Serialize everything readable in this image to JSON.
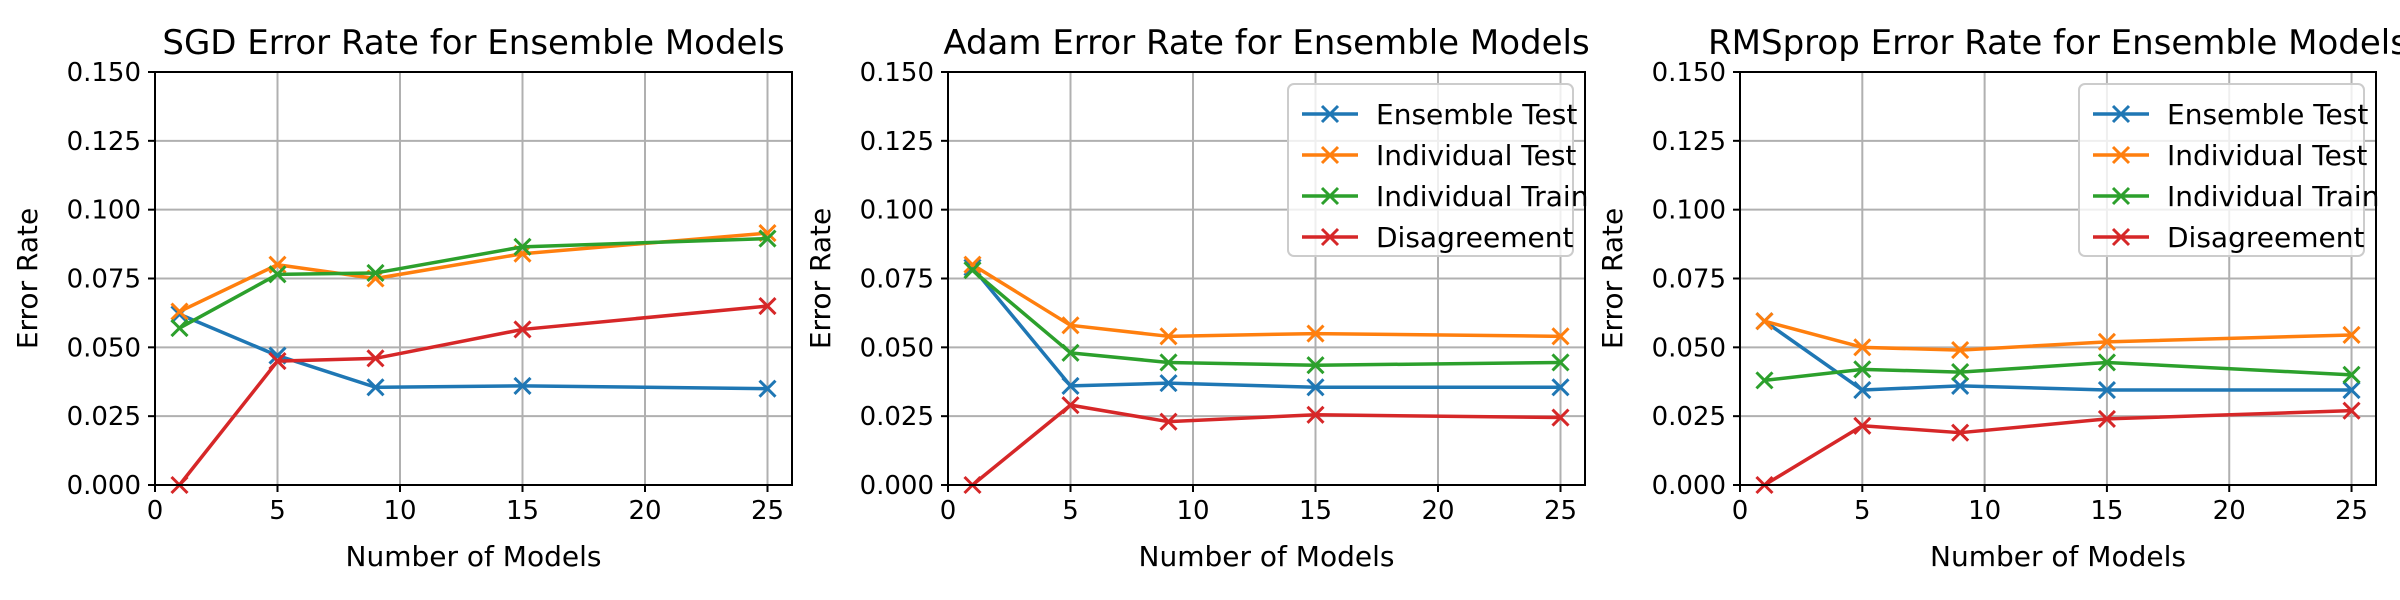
{
  "chart_data": [
    {
      "type": "line",
      "title": "SGD Error Rate for Ensemble Models",
      "xlabel": "Number of Models",
      "ylabel": "Error Rate",
      "xlim": [
        0,
        26
      ],
      "ylim": [
        0,
        0.15
      ],
      "xticks": [
        0,
        5,
        10,
        15,
        20,
        25
      ],
      "xtick_labels": [
        "0",
        "5",
        "10",
        "15",
        "20",
        "25"
      ],
      "yticks": [
        0,
        0.025,
        0.05,
        0.075,
        0.1,
        0.125,
        0.15
      ],
      "ytick_labels": [
        "0.000",
        "0.025",
        "0.050",
        "0.075",
        "0.100",
        "0.125",
        "0.150"
      ],
      "grid": true,
      "legend": false,
      "x": [
        1,
        5,
        9,
        15,
        25
      ],
      "series": [
        {
          "name": "Ensemble Test",
          "color": "#1f77b4",
          "values": [
            0.062,
            0.047,
            0.0355,
            0.036,
            0.035
          ]
        },
        {
          "name": "Individual Test",
          "color": "#ff7f0e",
          "values": [
            0.063,
            0.08,
            0.075,
            0.084,
            0.0915
          ]
        },
        {
          "name": "Individual Train",
          "color": "#2ca02c",
          "values": [
            0.057,
            0.0765,
            0.077,
            0.0865,
            0.0895
          ]
        },
        {
          "name": "Disagreement",
          "color": "#d62728",
          "values": [
            0.0,
            0.045,
            0.046,
            0.0565,
            0.065
          ]
        }
      ]
    },
    {
      "type": "line",
      "title": "Adam Error Rate for Ensemble Models",
      "xlabel": "Number of Models",
      "ylabel": "Error Rate",
      "xlim": [
        0,
        26
      ],
      "ylim": [
        0,
        0.15
      ],
      "xticks": [
        0,
        5,
        10,
        15,
        20,
        25
      ],
      "xtick_labels": [
        "0",
        "5",
        "10",
        "15",
        "20",
        "25"
      ],
      "yticks": [
        0,
        0.025,
        0.05,
        0.075,
        0.1,
        0.125,
        0.15
      ],
      "ytick_labels": [
        "0.000",
        "0.025",
        "0.050",
        "0.075",
        "0.100",
        "0.125",
        "0.150"
      ],
      "grid": true,
      "legend": true,
      "legend_position": "top-right",
      "x": [
        1,
        5,
        9,
        15,
        25
      ],
      "series": [
        {
          "name": "Ensemble Test",
          "color": "#1f77b4",
          "values": [
            0.079,
            0.036,
            0.037,
            0.0355,
            0.0355
          ]
        },
        {
          "name": "Individual Test",
          "color": "#ff7f0e",
          "values": [
            0.08,
            0.058,
            0.054,
            0.055,
            0.054
          ]
        },
        {
          "name": "Individual Train",
          "color": "#2ca02c",
          "values": [
            0.078,
            0.048,
            0.0445,
            0.0435,
            0.0445
          ]
        },
        {
          "name": "Disagreement",
          "color": "#d62728",
          "values": [
            0.0,
            0.029,
            0.023,
            0.0255,
            0.0245
          ]
        }
      ]
    },
    {
      "type": "line",
      "title": "RMSprop Error Rate for Ensemble Models",
      "xlabel": "Number of Models",
      "ylabel": "Error Rate",
      "xlim": [
        0,
        26
      ],
      "ylim": [
        0,
        0.15
      ],
      "xticks": [
        0,
        5,
        10,
        15,
        20,
        25
      ],
      "xtick_labels": [
        "0",
        "5",
        "10",
        "15",
        "20",
        "25"
      ],
      "yticks": [
        0,
        0.025,
        0.05,
        0.075,
        0.1,
        0.125,
        0.15
      ],
      "ytick_labels": [
        "0.000",
        "0.025",
        "0.050",
        "0.075",
        "0.100",
        "0.125",
        "0.150"
      ],
      "grid": true,
      "legend": true,
      "legend_position": "top-right",
      "x": [
        1,
        5,
        9,
        15,
        25
      ],
      "series": [
        {
          "name": "Ensemble Test",
          "color": "#1f77b4",
          "values": [
            0.0595,
            0.0345,
            0.036,
            0.0345,
            0.0345
          ]
        },
        {
          "name": "Individual Test",
          "color": "#ff7f0e",
          "values": [
            0.0595,
            0.05,
            0.049,
            0.052,
            0.0545
          ]
        },
        {
          "name": "Individual Train",
          "color": "#2ca02c",
          "values": [
            0.038,
            0.042,
            0.041,
            0.0445,
            0.04
          ]
        },
        {
          "name": "Disagreement",
          "color": "#d62728",
          "values": [
            0.0,
            0.0215,
            0.019,
            0.024,
            0.027
          ]
        }
      ]
    }
  ]
}
